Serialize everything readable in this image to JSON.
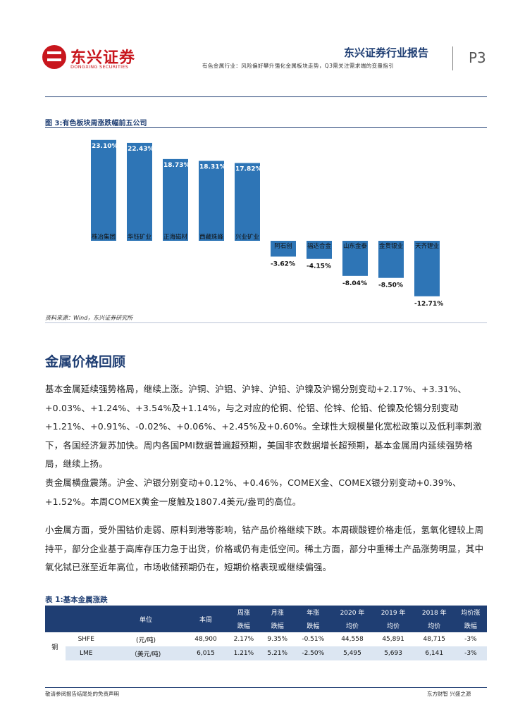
{
  "header": {
    "logo_cn": "东兴证券",
    "logo_en": "DONGXING SECURITIES",
    "report_title": "东兴证券行业报告",
    "subtitle": "有色金属行业：风险偏好攀升强化金属板块走势，Q3需关注需求端的变量指引",
    "page": "P3"
  },
  "figure": {
    "title": "图 3:有色板块周涨跌幅前五公司",
    "source": "资料来源：Wind，东兴证券研究所"
  },
  "chart_data": {
    "type": "bar",
    "categories": [
      "株冶集团",
      "华钰矿业",
      "正海磁材",
      "西藏珠峰",
      "兴业矿业",
      "阿石创",
      "福达合金",
      "山东金泰",
      "金贵银业",
      "天齐锂业"
    ],
    "values": [
      23.1,
      22.43,
      18.73,
      18.31,
      17.82,
      -3.62,
      -4.15,
      -8.04,
      -8.5,
      -12.71
    ],
    "labels": [
      "23.10%",
      "22.43%",
      "18.73%",
      "18.31%",
      "17.82%",
      "-3.62%",
      "-4.15%",
      "-8.04%",
      "-8.50%",
      "-12.71%"
    ],
    "color": "#2e75b6",
    "title": "",
    "xlabel": "",
    "ylabel": ""
  },
  "section": {
    "heading": "金属价格回顾",
    "paragraphs": [
      "基本金属延续强势格局，继续上涨。沪铜、沪铝、沪锌、沪铅、沪镍及沪锡分别变动+2.17%、+3.31%、+0.03%、+1.24%、+3.54%及+1.14%，与之对应的伦铜、伦铝、伦锌、伦铅、伦镍及伦锡分别变动+1.21%、+0.91%、-0.02%、+0.06%、+2.45%及+0.60%。全球性大规模量化宽松政策以及低利率刺激下，各国经济复苏加快。周内各国PMI数据普遍超预期，美国非农数据增长超预期，基本金属周内延续强势格局，继续上扬。",
      "贵金属横盘震荡。沪金、沪银分别变动+0.12%、+0.46%，COMEX金、COMEX银分别变动+0.39%、+1.52%。本周COMEX黄金一度触及1807.4美元/盎司的高位。",
      "小金属方面，受外围钴价走弱、原料到港等影响，钴产品价格继续下跌。本周碳酸锂价格走低，氢氧化锂较上周持平，部分企业基于高库存压力急于出货，价格或仍有走低空间。稀土方面，部分中重稀土产品涨势明显，其中氧化铽已涨至近年高位，市场收储预期仍在，短期价格表现或继续偏强。"
    ]
  },
  "table": {
    "title": "表 1:基本金属涨跌",
    "headers": {
      "unit": "单位",
      "week": "本周",
      "wk1": "周涨",
      "wk2": "跌幅",
      "mo1": "月涨",
      "mo2": "跌幅",
      "yr1": "年涨",
      "yr2": "跌幅",
      "y20a": "2020 年",
      "y20b": "均价",
      "y19a": "2019 年",
      "y19b": "均价",
      "y18a": "2018 年",
      "y18b": "均价",
      "av1": "均价涨",
      "av2": "跌幅"
    },
    "metal": "铜",
    "rows": [
      {
        "market": "SHFE",
        "unit": "(元/吨)",
        "week": "48,900",
        "wk": "2.17%",
        "mo": "9.35%",
        "yr": "-0.51%",
        "y2020": "44,558",
        "y2019": "45,891",
        "y2018": "48,715",
        "avg": "-3%"
      },
      {
        "market": "LME",
        "unit": "（美元/吨)",
        "week": "6,015",
        "wk": "1.21%",
        "mo": "5.21%",
        "yr": "-2.50%",
        "y2020": "5,495",
        "y2019": "5,693",
        "y2018": "6,141",
        "avg": "-3%"
      }
    ]
  },
  "footer": {
    "left": "敬请参阅报告结尾处的免责声明",
    "right": "东方财智  兴盛之源"
  }
}
